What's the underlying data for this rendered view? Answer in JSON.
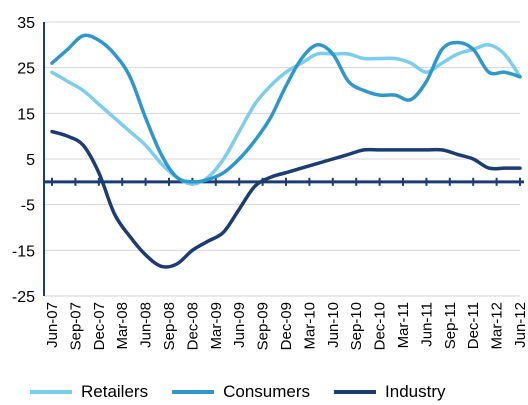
{
  "chart_data": {
    "type": "line",
    "title": "",
    "xlabel": "",
    "ylabel": "",
    "ylim": [
      -25,
      35
    ],
    "y_ticks": [
      35,
      25,
      15,
      5,
      -5,
      -15,
      -25
    ],
    "x_tick_labels": [
      "Jun-07",
      "Sep-07",
      "Dec-07",
      "Mar-08",
      "Jun-08",
      "Sep-08",
      "Dec-08",
      "Mar-09",
      "Jun-09",
      "Sep-09",
      "Dec-09",
      "Mar-10",
      "Jun-10",
      "Sep-10",
      "Dec-10",
      "Mar-11",
      "Jun-11",
      "Sep-11",
      "Dec-11",
      "Mar-12",
      "Jun-12"
    ],
    "legend_position": "bottom",
    "grid": "horizontal",
    "series": [
      {
        "name": "Retailers",
        "color": "#7dcdee",
        "values": [
          24,
          22,
          20,
          17,
          14,
          11,
          8,
          4,
          1,
          -0.5,
          1,
          5,
          11,
          17,
          21,
          24,
          26,
          28,
          28,
          28,
          27,
          27,
          27,
          26,
          24,
          26,
          28,
          29,
          30,
          28,
          23
        ]
      },
      {
        "name": "Consumers",
        "color": "#2f97cc",
        "values": [
          26,
          29,
          32,
          31,
          28,
          23,
          14,
          6,
          1,
          0,
          0.5,
          2,
          5,
          9,
          14,
          21,
          27,
          30,
          28,
          22,
          20,
          19,
          19,
          18,
          22,
          29,
          30.5,
          29,
          24,
          24,
          23
        ]
      },
      {
        "name": "Industry",
        "color": "#1c3d73",
        "values": [
          11,
          10,
          8,
          2,
          -7,
          -12,
          -16,
          -18.5,
          -18,
          -15,
          -13,
          -11,
          -6,
          -1,
          1,
          2,
          3,
          4,
          5,
          6,
          7,
          7,
          7,
          7,
          7,
          7,
          6,
          5,
          3,
          3,
          3
        ]
      }
    ]
  },
  "legend": [
    {
      "label": "Retailers",
      "color": "#7dcdee"
    },
    {
      "label": "Consumers",
      "color": "#2f97cc"
    },
    {
      "label": "Industry",
      "color": "#1c3d73"
    }
  ]
}
